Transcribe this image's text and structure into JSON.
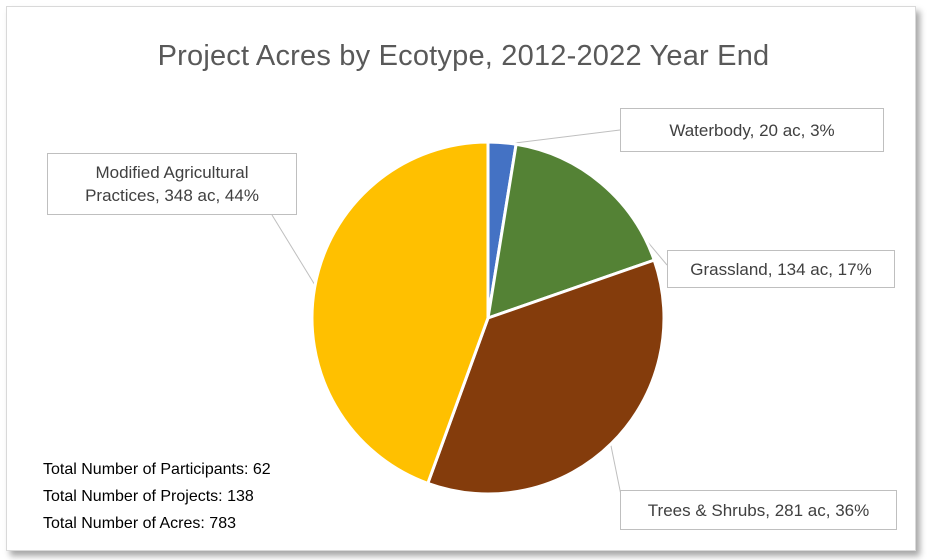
{
  "chart_data": {
    "type": "pie",
    "title": "Project Acres by Ecotype, 2012-2022 Year End",
    "slices": [
      {
        "name": "Waterbody",
        "value": 20,
        "unit": "ac",
        "percent": 3,
        "label": "Waterbody, 20 ac, 3%",
        "color": "#4472c4"
      },
      {
        "name": "Grassland",
        "value": 134,
        "unit": "ac",
        "percent": 17,
        "label": "Grassland, 134 ac, 17%",
        "color": "#548235"
      },
      {
        "name": "Trees & Shrubs",
        "value": 281,
        "unit": "ac",
        "percent": 36,
        "label": "Trees & Shrubs, 281 ac, 36%",
        "color": "#843c0c"
      },
      {
        "name": "Modified Agricultural Practices",
        "value": 348,
        "unit": "ac",
        "percent": 44,
        "label_lines": [
          "Modified Agricultural",
          "Practices, 348 ac, 44%"
        ],
        "color": "#ffc000"
      }
    ]
  },
  "totals": {
    "participants": "Total Number of Participants: 62",
    "projects": "Total Number of Projects: 138",
    "acres": "Total Number of Acres: 783"
  }
}
